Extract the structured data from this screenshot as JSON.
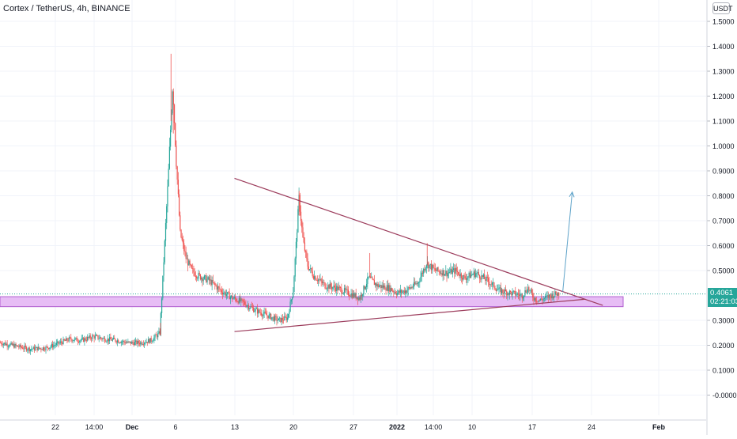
{
  "header": {
    "symbol_title": "Cortex / TetherUS, 4h, BINANCE",
    "currency_label": "USDT"
  },
  "price_tag": {
    "price": "0.4061",
    "countdown": "02:21:03"
  },
  "colors": {
    "up": "#26a69a",
    "down": "#ef5350",
    "trendline": "#9c3c5c",
    "zone_fill": "#e7bdf5",
    "zone_border": "#b05fd0",
    "arrow": "#5fa3c9",
    "price_line": "#26a69a"
  },
  "chart_data": {
    "type": "candlestick",
    "title": "Cortex / TetherUS, 4h, BINANCE",
    "xlabel": "",
    "ylabel": "",
    "y_ticks": [
      "1.5000",
      "1.4000",
      "1.3000",
      "1.2000",
      "1.1000",
      "1.0000",
      "0.9000",
      "0.8000",
      "0.7000",
      "0.6000",
      "0.5000",
      "0.3000",
      "0.2000",
      "0.1000",
      "-0.0000"
    ],
    "x_ticks": [
      "22",
      "14:00",
      "Dec",
      "6",
      "13",
      "20",
      "27",
      "2022",
      "14:00",
      "10",
      "17",
      "24",
      "Feb"
    ],
    "ylim": [
      -0.05,
      1.55
    ],
    "grid": true,
    "current_price": 0.4061,
    "path": [
      [
        0,
        0.21
      ],
      [
        5,
        0.185
      ],
      [
        8,
        0.19
      ],
      [
        12,
        0.225
      ],
      [
        14,
        0.22
      ],
      [
        16,
        0.235
      ],
      [
        18,
        0.225
      ],
      [
        20,
        0.22
      ],
      [
        22,
        0.21
      ],
      [
        24,
        0.21
      ],
      [
        26,
        0.22
      ],
      [
        27.5,
        0.25
      ],
      [
        29,
        0.9
      ],
      [
        29.7,
        1.25
      ],
      [
        30.3,
        0.95
      ],
      [
        31,
        0.65
      ],
      [
        32,
        0.55
      ],
      [
        33,
        0.5
      ],
      [
        34,
        0.48
      ],
      [
        36,
        0.46
      ],
      [
        38,
        0.42
      ],
      [
        40,
        0.39
      ],
      [
        42,
        0.37
      ],
      [
        44,
        0.34
      ],
      [
        46,
        0.32
      ],
      [
        48,
        0.3
      ],
      [
        49.5,
        0.31
      ],
      [
        50.5,
        0.42
      ],
      [
        51.5,
        0.79
      ],
      [
        52.2,
        0.62
      ],
      [
        53,
        0.52
      ],
      [
        54,
        0.48
      ],
      [
        56,
        0.44
      ],
      [
        58,
        0.43
      ],
      [
        60,
        0.41
      ],
      [
        62,
        0.39
      ],
      [
        63.5,
        0.47
      ],
      [
        65,
        0.44
      ],
      [
        67,
        0.43
      ],
      [
        68.5,
        0.41
      ],
      [
        70,
        0.42
      ],
      [
        72,
        0.45
      ],
      [
        73.5,
        0.53
      ],
      [
        75,
        0.5
      ],
      [
        77,
        0.49
      ],
      [
        78.5,
        0.5
      ],
      [
        80,
        0.47
      ],
      [
        82,
        0.49
      ],
      [
        84,
        0.46
      ],
      [
        86,
        0.42
      ],
      [
        88,
        0.41
      ],
      [
        90,
        0.4
      ],
      [
        91,
        0.43
      ],
      [
        92,
        0.39
      ],
      [
        93,
        0.38
      ],
      [
        95,
        0.4
      ],
      [
        96.5,
        0.41
      ]
    ],
    "trendlines": [
      {
        "name": "descending resistance",
        "points": [
          [
            44,
            0.87
          ],
          [
            104,
            0.36
          ]
        ]
      },
      {
        "name": "ascending support",
        "points": [
          [
            44,
            0.255
          ],
          [
            101,
            0.385
          ]
        ]
      }
    ],
    "zones": [
      {
        "name": "support zone",
        "y_range": [
          0.355,
          0.395
        ],
        "x_range": [
          0,
          120
        ]
      }
    ],
    "arrows": [
      {
        "name": "breakout projection",
        "from": [
          108,
          0.415
        ],
        "to": [
          111,
          0.815
        ]
      }
    ]
  }
}
